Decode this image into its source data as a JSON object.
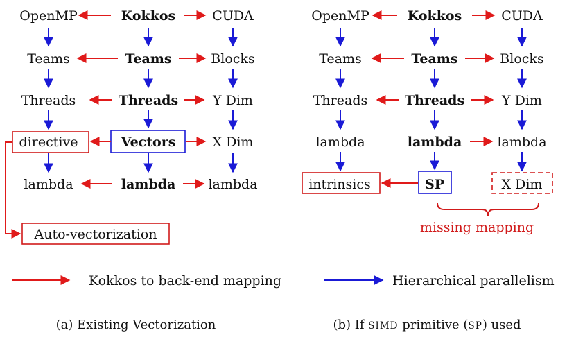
{
  "colors": {
    "red": "#e01a1a",
    "blue": "#1a1ad6",
    "box_red": "#d11a1a",
    "box_blue": "#1a1ad6"
  },
  "diagram_a": {
    "caption": "(a) Existing Vectorization",
    "col_openmp": [
      "OpenMP",
      "Teams",
      "Threads",
      "directive",
      "lambda"
    ],
    "col_kokkos": [
      "Kokkos",
      "Teams",
      "Threads",
      "Vectors",
      "lambda"
    ],
    "col_cuda": [
      "CUDA",
      "Blocks",
      "Y Dim",
      "X Dim",
      "lambda"
    ],
    "auto_vectorization": "Auto-vectorization"
  },
  "diagram_b": {
    "caption_prefix": "(b) If ",
    "caption_sc1": "SIMD",
    "caption_mid": " primitive (",
    "caption_sc2": "SP",
    "caption_suffix": ") used",
    "col_openmp": [
      "OpenMP",
      "Teams",
      "Threads",
      "lambda",
      "intrinsics"
    ],
    "col_kokkos": [
      "Kokkos",
      "Teams",
      "Threads",
      "lambda",
      "SP"
    ],
    "col_cuda": [
      "CUDA",
      "Blocks",
      "Y Dim",
      "lambda",
      "X Dim"
    ],
    "missing_label": "missing mapping"
  },
  "legend": {
    "red_label": "Kokkos to back-end mapping",
    "blue_label": "Hierarchical parallelism"
  }
}
